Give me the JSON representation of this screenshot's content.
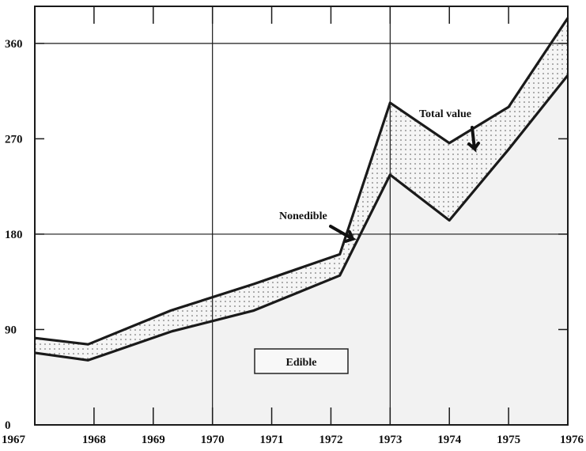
{
  "chart_data": {
    "type": "area",
    "title": "",
    "xlabel": "",
    "ylabel": "",
    "x": [
      1967,
      1967.9,
      1969.3,
      1970.7,
      1972.15,
      1973,
      1974,
      1975,
      1976
    ],
    "series": [
      {
        "name": "Edible",
        "values": [
          68,
          61,
          88,
          108,
          141,
          236,
          193,
          260,
          330
        ]
      },
      {
        "name": "Total value",
        "values": [
          82,
          76,
          108,
          133,
          161,
          304,
          266,
          300,
          384
        ]
      }
    ],
    "xticks": [
      1967,
      1968,
      1969,
      1970,
      1971,
      1972,
      1973,
      1974,
      1975,
      1976
    ],
    "yticks": [
      0,
      90,
      180,
      270,
      360
    ],
    "xlim": [
      1967,
      1976
    ],
    "ylim": [
      0,
      395
    ],
    "grid": {
      "horizontal": [
        180,
        360
      ],
      "vertical": [
        1970,
        1973
      ]
    },
    "annotations": {
      "total_value": "Total value",
      "nonedible": "Nonedible",
      "edible": "Edible"
    },
    "colors": {
      "line": "#1a1a1a",
      "stipple": "#555555",
      "fill": "#f2f2f2"
    }
  }
}
